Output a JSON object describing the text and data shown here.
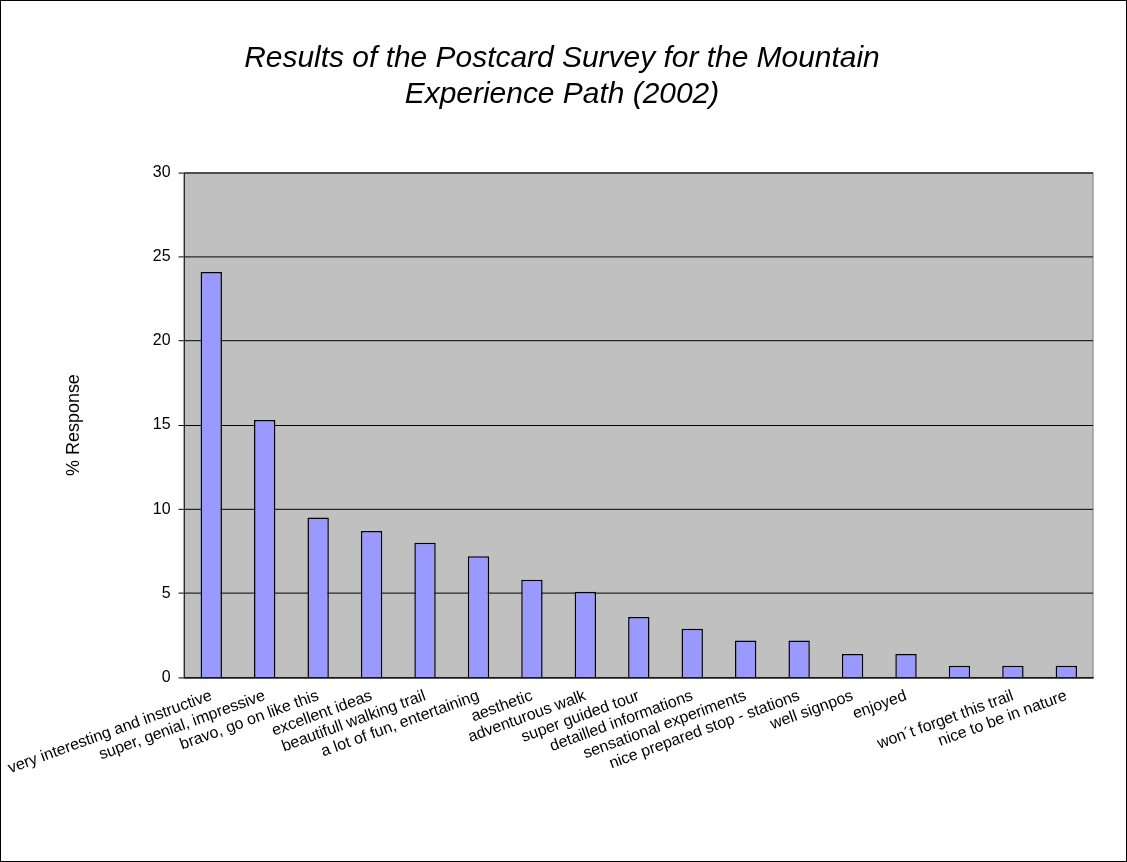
{
  "chart_data": {
    "type": "bar",
    "title": "Results of the Postcard Survey for the Mountain Experience Path (2002)",
    "ylabel": "% Response",
    "categories": [
      "very interesting and instructive",
      "super, genial, impressive",
      "bravo, go on like this",
      "excellent ideas",
      "beautifull walking trail",
      "a lot of fun, entertaining",
      "aesthetic",
      "adventurous walk",
      "super guided tour",
      "detailled informations",
      "sensational experiments",
      "nice prepared stop - stations",
      "well signpos",
      "enjoyed",
      null,
      "won´t forget this trail",
      "nice to be in nature"
    ],
    "values": [
      24.1,
      15.3,
      9.5,
      8.7,
      8.0,
      7.2,
      5.8,
      5.1,
      3.6,
      2.9,
      2.2,
      2.2,
      1.4,
      1.4,
      0.7,
      0.7,
      0.7
    ],
    "color": "#9999ff",
    "ylim": [
      0,
      30
    ],
    "yticks": [
      0,
      5,
      10,
      15,
      20,
      25,
      30
    ],
    "grid": "y",
    "legend": false
  }
}
